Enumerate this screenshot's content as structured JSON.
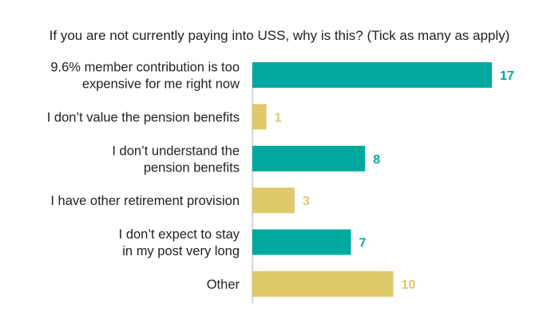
{
  "chart_data": {
    "type": "bar",
    "orientation": "horizontal",
    "title": "If you are not currently paying into USS, why is this? (Tick as many as apply)",
    "categories": [
      [
        "9.6% member contribution is too",
        "expensive for me right now"
      ],
      [
        "I don’t value the pension benefits"
      ],
      [
        "I don’t understand the",
        "pension benefits"
      ],
      [
        "I have other retirement provision"
      ],
      [
        "I don’t expect to stay",
        "in my post very long"
      ],
      [
        "Other"
      ]
    ],
    "values": [
      17,
      1,
      8,
      3,
      7,
      10
    ],
    "colors": [
      "#00a99d",
      "#e0c96a",
      "#00a99d",
      "#e0c96a",
      "#00a99d",
      "#e0c96a"
    ],
    "xlim": [
      0,
      17
    ],
    "grid": false,
    "legend": "none"
  }
}
